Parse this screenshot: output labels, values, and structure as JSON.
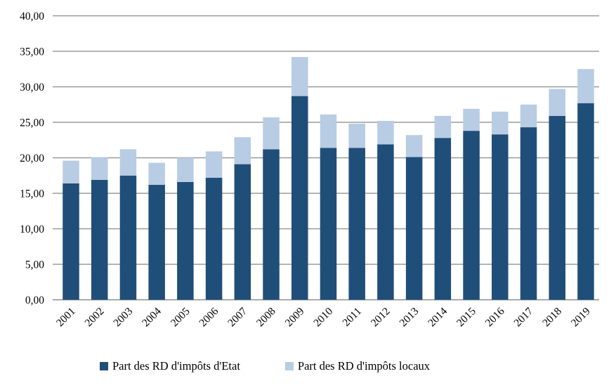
{
  "chart_data": {
    "type": "bar",
    "stacked": true,
    "title": "",
    "xlabel": "",
    "ylabel": "",
    "categories": [
      "2001",
      "2002",
      "2003",
      "2004",
      "2005",
      "2006",
      "2007",
      "2008",
      "2009",
      "2010",
      "2011",
      "2012",
      "2013",
      "2014",
      "2015",
      "2016",
      "2017",
      "2018",
      "2019"
    ],
    "series": [
      {
        "name": "Part des RD d'impôts d'Etat",
        "color": "#1F4E79",
        "values": [
          16.4,
          16.9,
          17.5,
          16.2,
          16.6,
          17.2,
          19.1,
          21.2,
          28.7,
          21.4,
          21.4,
          21.9,
          20.1,
          22.8,
          23.8,
          23.3,
          24.3,
          25.9,
          27.7
        ]
      },
      {
        "name": "Part des RD d'impôts locaux",
        "color": "#B8CCE4",
        "values": [
          3.2,
          3.2,
          3.7,
          3.1,
          3.4,
          3.7,
          3.8,
          4.5,
          5.5,
          4.7,
          3.4,
          3.3,
          3.1,
          3.1,
          3.1,
          3.2,
          3.2,
          3.8,
          4.8
        ]
      }
    ],
    "ylim": [
      0,
      40
    ],
    "ytick_step": 5,
    "ytick_labels": [
      "0,00",
      "5,00",
      "10,00",
      "15,00",
      "20,00",
      "25,00",
      "30,00",
      "35,00",
      "40,00"
    ],
    "grid": true,
    "legend_position": "bottom",
    "x_label_rotation": -45
  }
}
